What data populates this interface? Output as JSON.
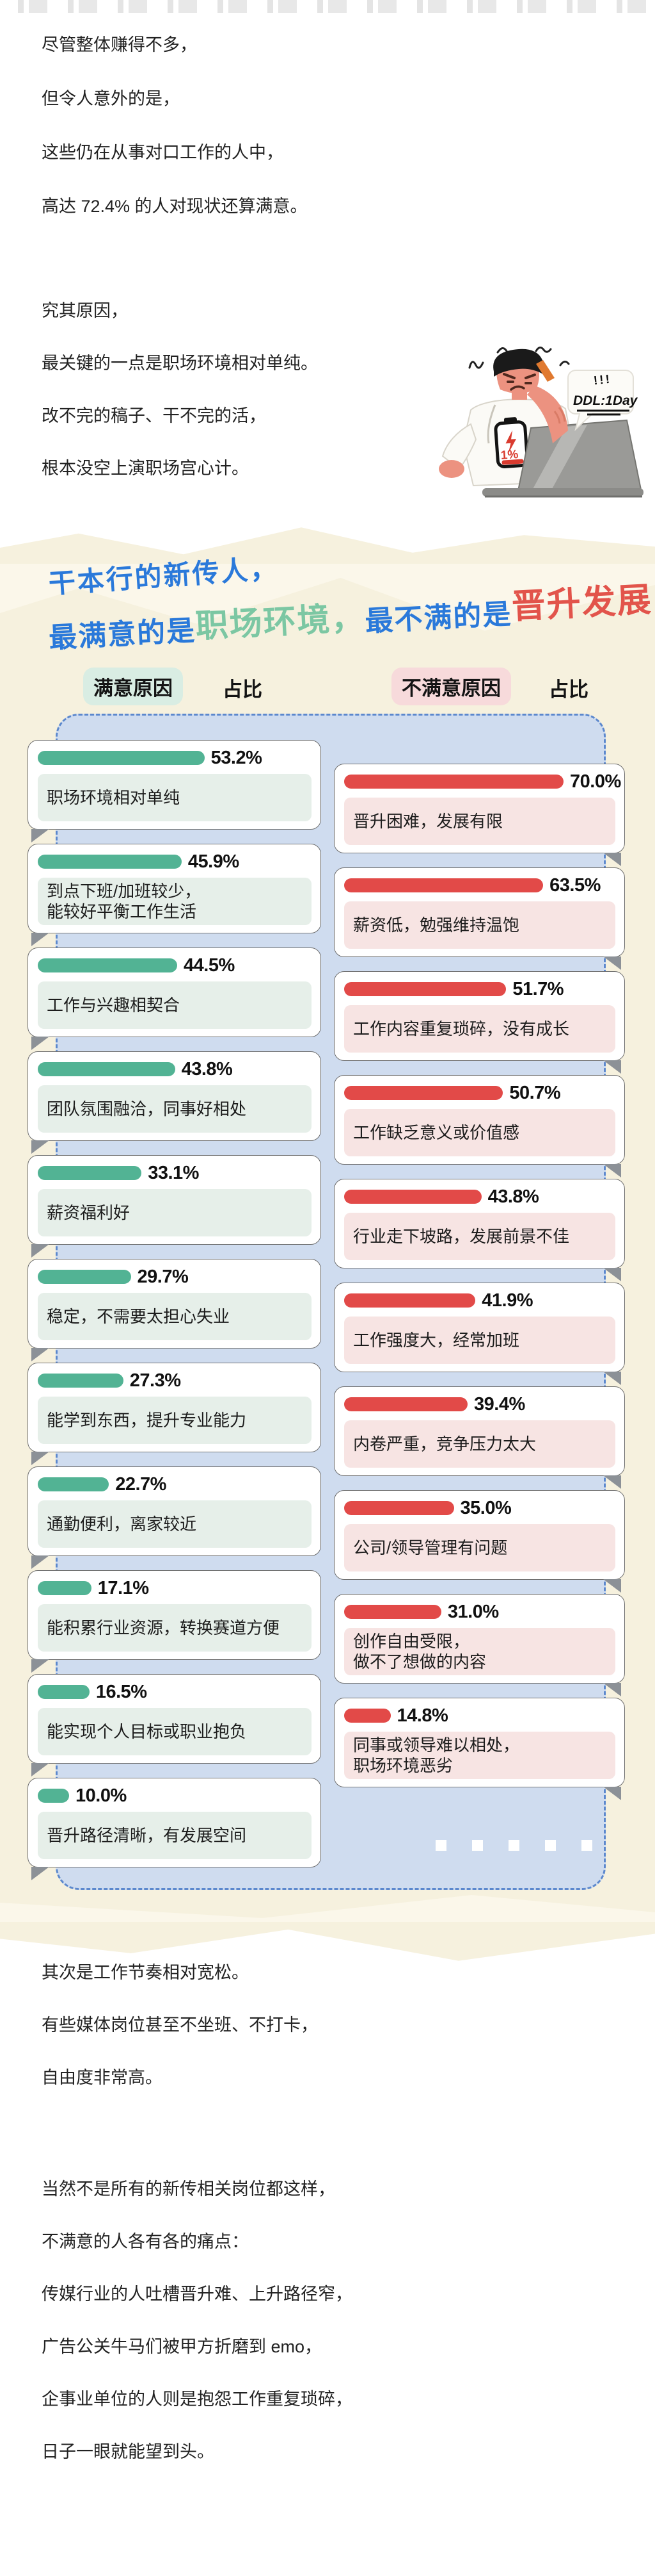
{
  "intro": [
    "尽管整体赚得不多，",
    "但令人意外的是，",
    "这些仍在从事对口工作的人中，",
    "高达 72.4% 的人对现状还算满意。"
  ],
  "reason": {
    "line1": "究其原因，",
    "highlight": "最关键的一点是职场环境相对单纯。",
    "line3": "改不完的稿子、干不完的活，",
    "line4": "根本没空上演职场宫心计。"
  },
  "illustration": {
    "bubble_marks": "!!!",
    "bubble_text": "DDL:1Day",
    "battery_percent": "1%"
  },
  "headline": {
    "line1": "干本行的新传人，",
    "l2_blue1": "最满意的是",
    "l2_green": "职场环境，",
    "l2_blue2": "最不满的是",
    "l2_red": "晋升发展"
  },
  "table_headers": {
    "satisfied": "满意原因",
    "share_left": "占比",
    "dissatisfied": "不满意原因",
    "share_right": "占比"
  },
  "chart_data": [
    {
      "type": "bar",
      "orientation": "horizontal",
      "title": "满意原因",
      "value_label": "占比",
      "unit": "%",
      "bar_color": "#52b394",
      "categories": [
        "职场环境相对单纯",
        "到点下班/加班较少，\n能较好平衡工作生活",
        "工作与兴趣相契合",
        "团队氛围融洽，同事好相处",
        "薪资福利好",
        "稳定，不需要太担心失业",
        "能学到东西，提升专业能力",
        "通勤便利，离家较近",
        "能积累行业资源，转换赛道方便",
        "能实现个人目标或职业抱负",
        "晋升路径清晰，有发展空间"
      ],
      "values": [
        53.2,
        45.9,
        44.5,
        43.8,
        33.1,
        29.7,
        27.3,
        22.7,
        17.1,
        16.5,
        10.0
      ]
    },
    {
      "type": "bar",
      "orientation": "horizontal",
      "title": "不满意原因",
      "value_label": "占比",
      "unit": "%",
      "bar_color": "#e24a48",
      "categories": [
        "晋升困难，发展有限",
        "薪资低，勉强维持温饱",
        "工作内容重复琐碎，没有成长",
        "工作缺乏意义或价值感",
        "行业走下坡路，发展前景不佳",
        "工作强度大，经常加班",
        "内卷严重，竞争压力太大",
        "公司/领导管理有问题",
        "创作自由受限，\n做不了想做的内容",
        "同事或领导难以相处，\n职场环境恶劣"
      ],
      "values": [
        70.0,
        63.5,
        51.7,
        50.7,
        43.8,
        41.9,
        39.4,
        35.0,
        31.0,
        14.8
      ]
    }
  ],
  "outro": [
    "其次是工作节奏相对宽松。",
    "有些媒体岗位甚至不坐班、不打卡，",
    "自由度非常高。",
    "当然不是所有的新传相关岗位都这样，",
    "不满意的人各有各的痛点：",
    "传媒行业的人吐槽晋升难、上升路径窄，",
    "广告公关牛马们被甲方折磨到 emo，",
    "企事业单位的人则是抱怨工作重复琐碎，",
    "日子一眼就能望到头。"
  ],
  "colors": {
    "title_blue": "#2a79da",
    "title_green": "#7cc7a3",
    "title_red": "#e2544b",
    "emphasis_red": "#e9463c",
    "bar_green": "#52b394",
    "bar_red": "#e24a48",
    "label_mint": "#e6efe9",
    "label_pink": "#f7e4e3",
    "header_mint": "#d9ede3",
    "header_pink": "#f7dadb",
    "panel_blue": "#cfdcef",
    "panel_border": "#5c88cd",
    "cream_bg": "#f6f1de"
  }
}
